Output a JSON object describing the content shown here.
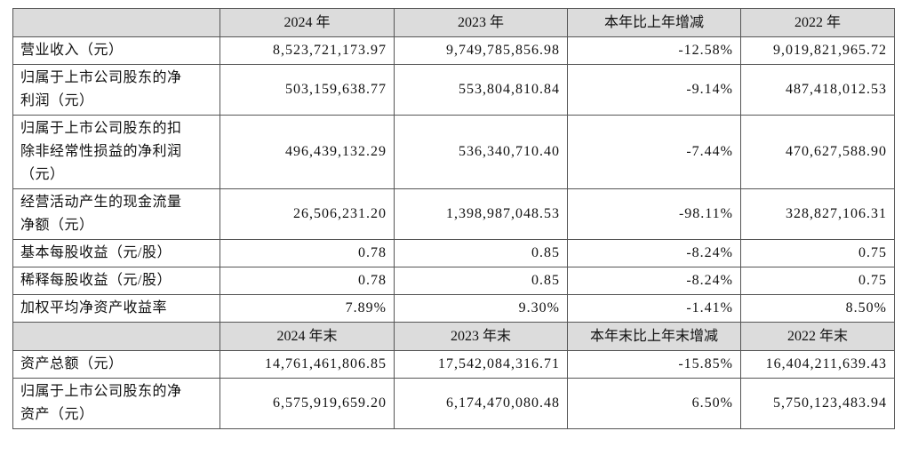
{
  "table": {
    "header": [
      "2024 年",
      "2023 年",
      "本年比上年增减",
      "2022 年"
    ],
    "rows": [
      {
        "label": [
          "营业收入（元）"
        ],
        "cells": [
          "8,523,721,173.97",
          "9,749,785,856.98",
          "-12.58%",
          "9,019,821,965.72"
        ]
      },
      {
        "label": [
          "归属于上市公司股东的净",
          "利润（元）"
        ],
        "cells": [
          "503,159,638.77",
          "553,804,810.84",
          "-9.14%",
          "487,418,012.53"
        ]
      },
      {
        "label": [
          "归属于上市公司股东的扣",
          "除非经常性损益的净利润",
          "（元）"
        ],
        "cells": [
          "496,439,132.29",
          "536,340,710.40",
          "-7.44%",
          "470,627,588.90"
        ]
      },
      {
        "label": [
          "经营活动产生的现金流量",
          "净额（元）"
        ],
        "cells": [
          "26,506,231.20",
          "1,398,987,048.53",
          "-98.11%",
          "328,827,106.31"
        ]
      },
      {
        "label": [
          "基本每股收益（元/股）"
        ],
        "cells": [
          "0.78",
          "0.85",
          "-8.24%",
          "0.75"
        ]
      },
      {
        "label": [
          "稀释每股收益（元/股）"
        ],
        "cells": [
          "0.78",
          "0.85",
          "-8.24%",
          "0.75"
        ]
      },
      {
        "label": [
          "加权平均净资产收益率"
        ],
        "cells": [
          "7.89%",
          "9.30%",
          "-1.41%",
          "8.50%"
        ]
      }
    ],
    "header2": [
      "2024 年末",
      "2023 年末",
      "本年末比上年末增减",
      "2022 年末"
    ],
    "rows2": [
      {
        "label": [
          "资产总额（元）"
        ],
        "cells": [
          "14,761,461,806.85",
          "17,542,084,316.71",
          "-15.85%",
          "16,404,211,639.43"
        ]
      },
      {
        "label": [
          "归属于上市公司股东的净",
          "资产（元）"
        ],
        "cells": [
          "6,575,919,659.20",
          "6,174,470,080.48",
          "6.50%",
          "5,750,123,483.94"
        ]
      }
    ]
  }
}
